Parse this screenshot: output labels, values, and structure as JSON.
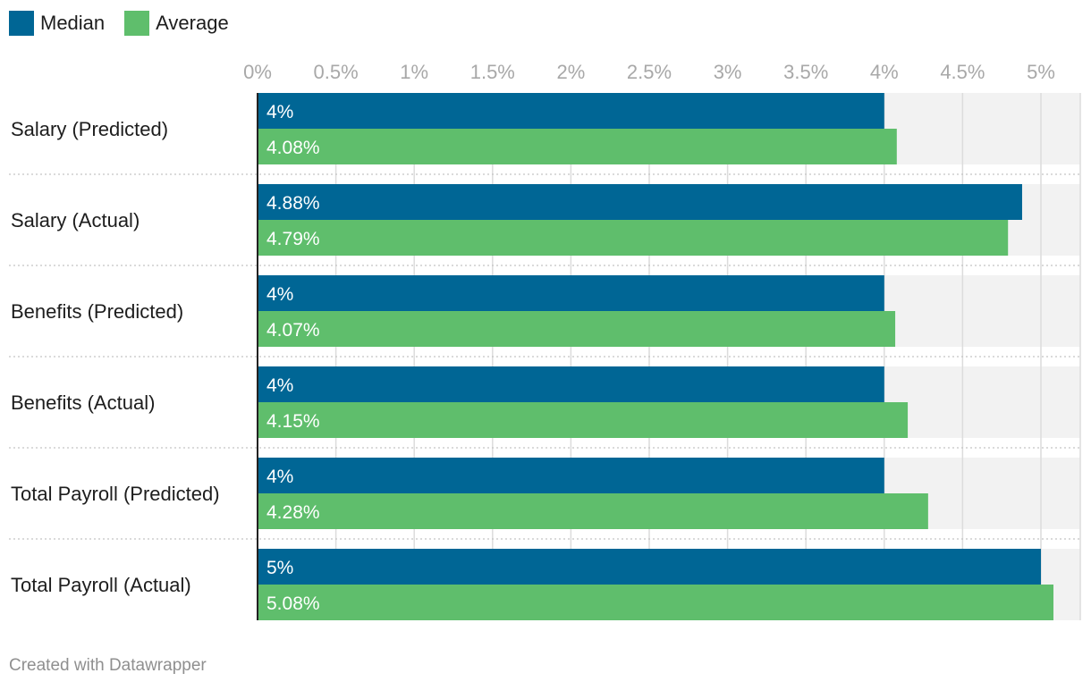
{
  "chart_data": {
    "type": "bar",
    "orientation": "horizontal",
    "title": "",
    "xlabel": "",
    "ylabel": "",
    "xlim": [
      0,
      5.25
    ],
    "ticks": [
      0,
      0.5,
      1,
      1.5,
      2,
      2.5,
      3,
      3.5,
      4,
      4.5,
      5
    ],
    "tick_labels": [
      "0%",
      "0.5%",
      "1%",
      "1.5%",
      "2%",
      "2.5%",
      "3%",
      "3.5%",
      "4%",
      "4.5%",
      "5%"
    ],
    "categories": [
      "Salary (Predicted)",
      "Salary (Actual)",
      "Benefits (Predicted)",
      "Benefits (Actual)",
      "Total Payroll (Predicted)",
      "Total Payroll (Actual)"
    ],
    "series": [
      {
        "name": "Median",
        "color": "#006695",
        "values": [
          4,
          4.88,
          4,
          4,
          4,
          5
        ],
        "labels": [
          "4%",
          "4.88%",
          "4%",
          "4%",
          "4%",
          "5%"
        ]
      },
      {
        "name": "Average",
        "color": "#5fbe6c",
        "values": [
          4.08,
          4.79,
          4.07,
          4.15,
          4.28,
          5.08
        ],
        "labels": [
          "4.08%",
          "4.79%",
          "4.07%",
          "4.15%",
          "4.28%",
          "5.08%"
        ]
      }
    ],
    "legend_position": "top-left",
    "grid": true
  },
  "legend": {
    "median_label": "Median",
    "average_label": "Average"
  },
  "footer": {
    "credit": "Created with Datawrapper"
  }
}
